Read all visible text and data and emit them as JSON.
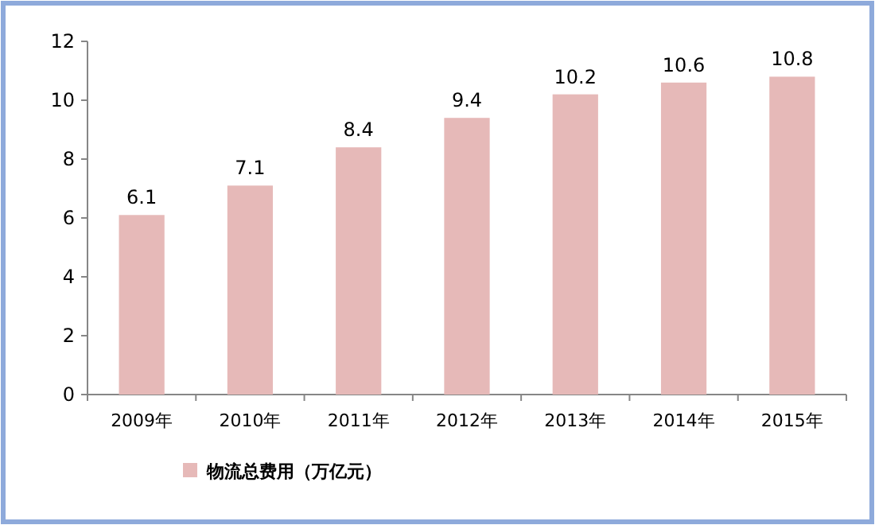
{
  "chart_data": {
    "type": "bar",
    "categories": [
      "2009年",
      "2010年",
      "2011年",
      "2012年",
      "2013年",
      "2014年",
      "2015年"
    ],
    "series": [
      {
        "name": "物流总费用（万亿元）",
        "color": "#e6b9b8",
        "values": [
          6.1,
          7.1,
          8.4,
          9.4,
          10.2,
          10.6,
          10.8
        ]
      }
    ],
    "ylim": [
      0,
      12
    ],
    "yticks": [
      0,
      2,
      4,
      6,
      8,
      10,
      12
    ],
    "data_labels": true,
    "legend": "bottom left",
    "grid": false
  }
}
